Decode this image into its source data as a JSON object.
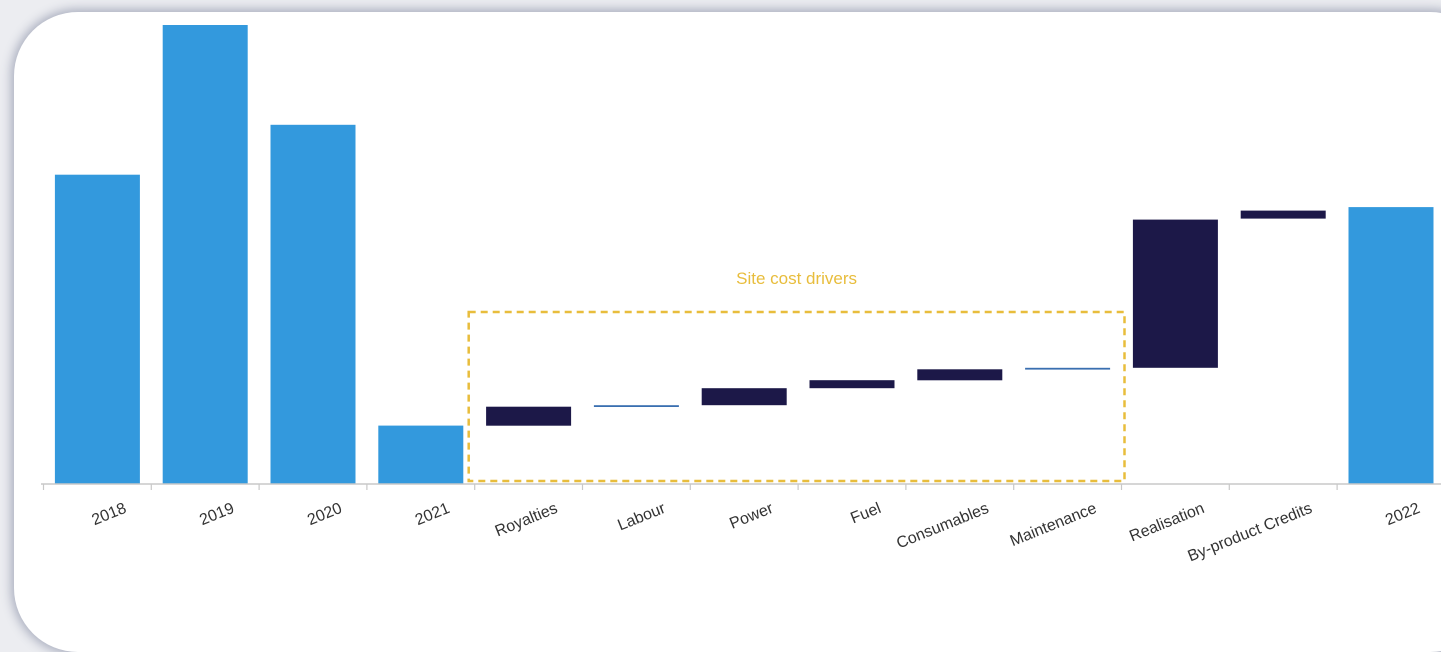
{
  "chart_data": {
    "type": "bar",
    "subtype": "waterfall",
    "title": "",
    "xlabel": "",
    "ylabel": "",
    "categories": [
      "2018",
      "2019",
      "2020",
      "2021",
      "Royalties",
      "Labour",
      "Power",
      "Fuel",
      "Consumables",
      "Maintenance",
      "Realisation",
      "By-product Credits",
      "2022"
    ],
    "bars": [
      {
        "category": "2018",
        "kind": "total",
        "start": 0,
        "end": 62
      },
      {
        "category": "2019",
        "kind": "total",
        "start": 0,
        "end": 92
      },
      {
        "category": "2020",
        "kind": "total",
        "start": 0,
        "end": 72
      },
      {
        "category": "2021",
        "kind": "total",
        "start": 0,
        "end": 11.7
      },
      {
        "category": "Royalties",
        "kind": "delta",
        "start": 11.7,
        "end": 15.5
      },
      {
        "category": "Labour",
        "kind": "delta",
        "start": 15.5,
        "end": 15.8
      },
      {
        "category": "Power",
        "kind": "delta",
        "start": 15.8,
        "end": 19.2
      },
      {
        "category": "Fuel",
        "kind": "delta",
        "start": 19.2,
        "end": 20.8
      },
      {
        "category": "Consumables",
        "kind": "delta",
        "start": 20.8,
        "end": 23.0
      },
      {
        "category": "Maintenance",
        "kind": "delta",
        "start": 23.0,
        "end": 23.3
      },
      {
        "category": "Realisation",
        "kind": "delta",
        "start": 23.3,
        "end": 53.0
      },
      {
        "category": "By-product Credits",
        "kind": "delta",
        "start": 53.2,
        "end": 54.8
      },
      {
        "category": "2022",
        "kind": "total",
        "start": 0,
        "end": 55.5
      }
    ],
    "ylim": [
      0,
      92
    ],
    "grid": false,
    "legend": "none",
    "colors": {
      "total": "#3399dd",
      "delta": "#1c1848",
      "thin_delta": "#3a6fb0",
      "annotation": "#e8bd3c",
      "axis": "#c8c8c8"
    },
    "annotations": [
      {
        "label": "Site cost drivers",
        "from_category": "Royalties",
        "to_category": "Maintenance",
        "style": "dashed-box"
      }
    ]
  }
}
